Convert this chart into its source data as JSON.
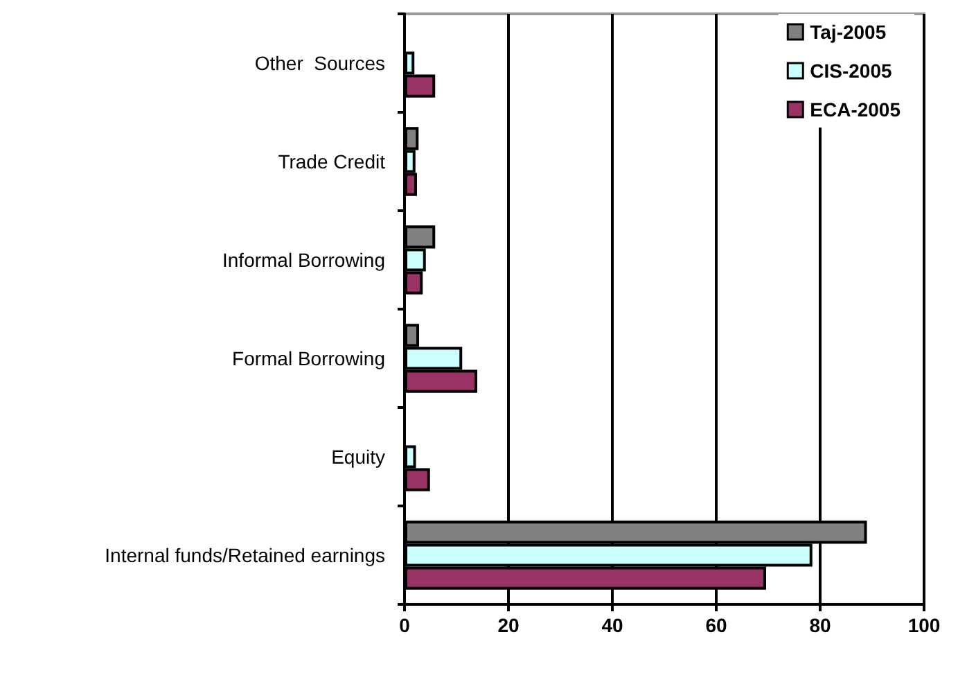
{
  "chart_data": {
    "type": "bar",
    "orientation": "horizontal",
    "categories": [
      "Other  Sources",
      "Trade Credit",
      "Informal Borrowing",
      "Formal Borrowing",
      "Equity",
      "Internal funds/Retained earnings"
    ],
    "series": [
      {
        "name": "Taj-2005",
        "color": "#808080",
        "values": [
          null,
          2.7,
          5.9,
          2.8,
          null,
          89.0
        ]
      },
      {
        "name": "CIS-2005",
        "color": "#ccffff",
        "values": [
          1.9,
          2.1,
          4.1,
          11.1,
          2.2,
          78.5
        ]
      },
      {
        "name": "ECA-2005",
        "color": "#993366",
        "values": [
          5.9,
          2.4,
          3.5,
          14.0,
          4.9,
          69.6
        ]
      }
    ],
    "xlim": [
      0,
      100
    ],
    "xticks": [
      0,
      20,
      40,
      60,
      80,
      100
    ],
    "grid": "x",
    "legend": "top right"
  }
}
